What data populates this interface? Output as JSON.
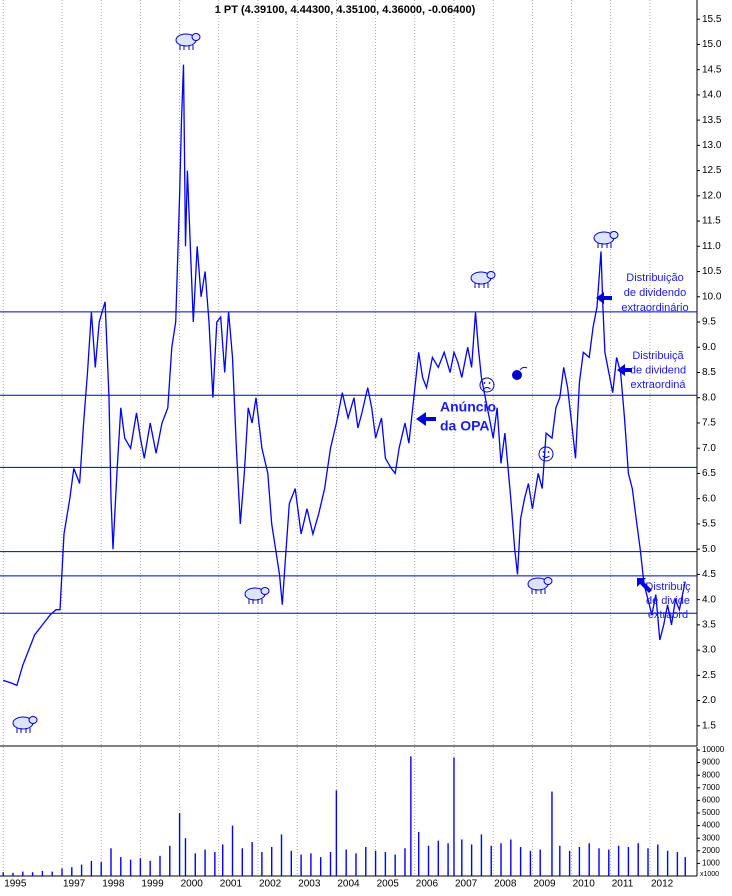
{
  "chart_data": [
    {
      "type": "line",
      "title": "1 PT (4.39100, 4.44300, 4.35100, 4.36000, -0.06400)",
      "xlim": [
        1995.5,
        2013.2
      ],
      "ylim": [
        1.1,
        15.88
      ],
      "yticks": [
        1.5,
        {
          "value": 2,
          "label": "2.0"
        },
        2.5,
        {
          "value": 3,
          "label": "3.0"
        },
        3.5,
        {
          "value": 4,
          "label": "4.0"
        },
        4.5,
        {
          "value": 5,
          "label": "5.0"
        },
        5.5,
        {
          "value": 6,
          "label": "6.0"
        },
        6.5,
        {
          "value": 7,
          "label": "7.0"
        },
        7.5,
        {
          "value": 8,
          "label": "8.0"
        },
        8.5,
        {
          "value": 9,
          "label": "9.0"
        },
        9.5,
        {
          "value": 10,
          "label": "10.0"
        },
        10.5,
        {
          "value": 11,
          "label": "11.0"
        },
        11.5,
        {
          "value": 12,
          "label": "12.0"
        },
        12.5,
        {
          "value": 13,
          "label": "13.0"
        },
        13.5,
        {
          "value": 14,
          "label": "14.0"
        },
        14.5,
        {
          "value": 15,
          "label": "15.0"
        },
        15.5
      ],
      "hlines": [
        9.7,
        8.05,
        6.62,
        4.95,
        4.47,
        3.73
      ],
      "grid": true,
      "series": [
        {
          "name": "PT",
          "color": "#0000ff",
          "x": [
            1995.5,
            1995.7,
            1995.85,
            1996.0,
            1996.3,
            1996.5,
            1996.7,
            1996.85,
            1996.95,
            1997.05,
            1997.2,
            1997.3,
            1997.45,
            1997.55,
            1997.65,
            1997.75,
            1997.85,
            1997.95,
            1998.1,
            1998.2,
            1998.25,
            1998.3,
            1998.4,
            1998.5,
            1998.6,
            1998.75,
            1998.9,
            1999.0,
            1999.1,
            1999.25,
            1999.4,
            1999.55,
            1999.7,
            1999.8,
            1999.9,
            2000.0,
            2000.05,
            2000.1,
            2000.15,
            2000.2,
            2000.3,
            2000.35,
            2000.45,
            2000.55,
            2000.65,
            2000.75,
            2000.85,
            2000.95,
            2001.05,
            2001.15,
            2001.25,
            2001.35,
            2001.45,
            2001.55,
            2001.65,
            2001.75,
            2001.85,
            2001.95,
            2002.1,
            2002.25,
            2002.35,
            2002.45,
            2002.55,
            2002.62,
            2002.7,
            2002.8,
            2002.95,
            2003.1,
            2003.25,
            2003.4,
            2003.55,
            2003.7,
            2003.85,
            2004.0,
            2004.15,
            2004.3,
            2004.45,
            2004.55,
            2004.65,
            2004.8,
            2004.9,
            2005.0,
            2005.15,
            2005.25,
            2005.4,
            2005.5,
            2005.6,
            2005.75,
            2005.85,
            2006.1,
            2006.2,
            2006.3,
            2006.45,
            2006.6,
            2006.75,
            2006.9,
            2007.0,
            2007.1,
            2007.2,
            2007.35,
            2007.45,
            2007.55,
            2007.62,
            2007.7,
            2007.8,
            2007.9,
            2008.0,
            2008.1,
            2008.2,
            2008.3,
            2008.45,
            2008.55,
            2008.62,
            2008.7,
            2008.8,
            2008.9,
            2009.0,
            2009.15,
            2009.25,
            2009.35,
            2009.5,
            2009.6,
            2009.7,
            2009.8,
            2009.9,
            2010.0,
            2010.1,
            2010.2,
            2010.3,
            2010.45,
            2010.55,
            2010.65,
            2010.75,
            2010.8,
            2010.85,
            2010.95,
            2011.05,
            2011.15,
            2011.25,
            2011.35,
            2011.45,
            2011.55,
            2011.65,
            2011.75,
            2011.85,
            2011.95,
            2012.05,
            2012.15,
            2012.25,
            2012.35,
            2012.45,
            2012.55,
            2012.65,
            2012.75,
            2012.9
          ],
          "values": [
            2.4,
            2.35,
            2.3,
            2.7,
            3.3,
            3.5,
            3.7,
            3.8,
            3.8,
            5.3,
            6.0,
            6.6,
            6.3,
            7.5,
            8.5,
            9.7,
            8.6,
            9.5,
            9.9,
            8.0,
            6.0,
            5.0,
            6.5,
            7.8,
            7.2,
            7.0,
            7.7,
            7.2,
            6.8,
            7.5,
            6.9,
            7.5,
            7.8,
            9.0,
            9.5,
            12.0,
            13.5,
            14.6,
            11.0,
            12.5,
            10.5,
            9.5,
            11.0,
            10.0,
            10.5,
            9.5,
            8.0,
            9.5,
            9.6,
            8.5,
            9.7,
            8.8,
            7.0,
            5.5,
            6.5,
            7.8,
            7.5,
            8.0,
            7.0,
            6.5,
            5.5,
            5.0,
            4.5,
            3.9,
            4.8,
            5.9,
            6.2,
            5.3,
            5.8,
            5.3,
            5.7,
            6.2,
            7.0,
            7.5,
            8.1,
            7.6,
            8.0,
            7.4,
            7.7,
            8.2,
            7.8,
            7.2,
            7.6,
            6.8,
            6.6,
            6.5,
            7.0,
            7.5,
            7.1,
            8.9,
            8.4,
            8.2,
            8.8,
            8.6,
            8.9,
            8.5,
            8.9,
            8.7,
            8.4,
            9.0,
            8.6,
            9.7,
            9.0,
            8.4,
            8.0,
            7.6,
            7.2,
            7.8,
            6.7,
            7.3,
            6.0,
            5.0,
            4.5,
            5.6,
            6.0,
            6.3,
            5.8,
            6.5,
            6.2,
            7.3,
            7.2,
            7.8,
            8.0,
            8.6,
            8.2,
            7.5,
            6.8,
            8.3,
            8.9,
            8.8,
            9.4,
            9.8,
            10.9,
            9.8,
            8.9,
            8.5,
            8.1,
            8.8,
            8.5,
            7.6,
            6.5,
            6.2,
            5.6,
            5.0,
            4.3,
            4.0,
            3.7,
            4.1,
            3.2,
            3.5,
            3.9,
            3.5,
            4.0,
            3.8,
            4.36
          ]
        }
      ],
      "annotations": [
        {
          "lines": [
            "Distribuição",
            "de dividendo",
            "extraordinário"
          ]
        },
        {
          "lines": [
            "Distribuiçã",
            "de dividend",
            "extraordiná"
          ]
        },
        {
          "lines": [
            "Anúncio",
            "da OPA"
          ]
        },
        {
          "lines": [
            "Distribuiç",
            "de divide",
            "extraord"
          ]
        }
      ]
    },
    {
      "type": "bar",
      "unit_label": "x1000",
      "xlim": [
        1995.5,
        2013.2
      ],
      "ylim": [
        0,
        10240
      ],
      "yticks": [
        1000,
        2000,
        3000,
        4000,
        5000,
        6000,
        7000,
        8000,
        9000,
        10000
      ],
      "xticks": [
        {
          "value": 1995.5,
          "label": "1995"
        },
        1997,
        1998,
        1999,
        2000,
        2001,
        2002,
        2003,
        2004,
        2005,
        2006,
        2007,
        2008,
        2009,
        2010,
        2011,
        2012
      ],
      "series": [
        {
          "name": "Volume",
          "color": "#0000ff",
          "x": [
            1995.5,
            1995.75,
            1996,
            1996.25,
            1996.5,
            1996.75,
            1997,
            1997.25,
            1997.5,
            1997.75,
            1998,
            1998.25,
            1998.5,
            1998.75,
            1999,
            1999.25,
            1999.5,
            1999.75,
            2000.0,
            2000.15,
            2000.4,
            2000.65,
            2000.9,
            2001.1,
            2001.35,
            2001.6,
            2001.85,
            2002.1,
            2002.35,
            2002.6,
            2002.85,
            2003.1,
            2003.35,
            2003.6,
            2003.85,
            2004.0,
            2004.25,
            2004.5,
            2004.75,
            2005.0,
            2005.25,
            2005.5,
            2005.75,
            2005.9,
            2006.1,
            2006.35,
            2006.6,
            2006.85,
            2007.0,
            2007.2,
            2007.45,
            2007.7,
            2007.95,
            2008.2,
            2008.45,
            2008.7,
            2008.95,
            2009.2,
            2009.5,
            2009.7,
            2009.95,
            2010.2,
            2010.45,
            2010.7,
            2010.95,
            2011.2,
            2011.45,
            2011.7,
            2011.95,
            2012.2,
            2012.45,
            2012.7,
            2012.9
          ],
          "values": [
            300,
            250,
            350,
            300,
            400,
            350,
            600,
            700,
            900,
            1200,
            1100,
            2200,
            1500,
            1300,
            1400,
            1200,
            1600,
            2400,
            5000,
            3000,
            1800,
            2100,
            1900,
            2500,
            4000,
            2200,
            2700,
            1900,
            2300,
            3300,
            2000,
            1700,
            1800,
            1500,
            1900,
            6800,
            2100,
            1800,
            2300,
            2000,
            1900,
            1700,
            2200,
            9500,
            3500,
            2400,
            2800,
            2600,
            9400,
            2900,
            2500,
            3300,
            2400,
            2600,
            2900,
            2300,
            2000,
            2100,
            6700,
            2400,
            2000,
            2300,
            2600,
            2200,
            2100,
            2400,
            2300,
            2600,
            2200,
            2500,
            2000,
            1900,
            1500
          ]
        }
      ]
    }
  ]
}
